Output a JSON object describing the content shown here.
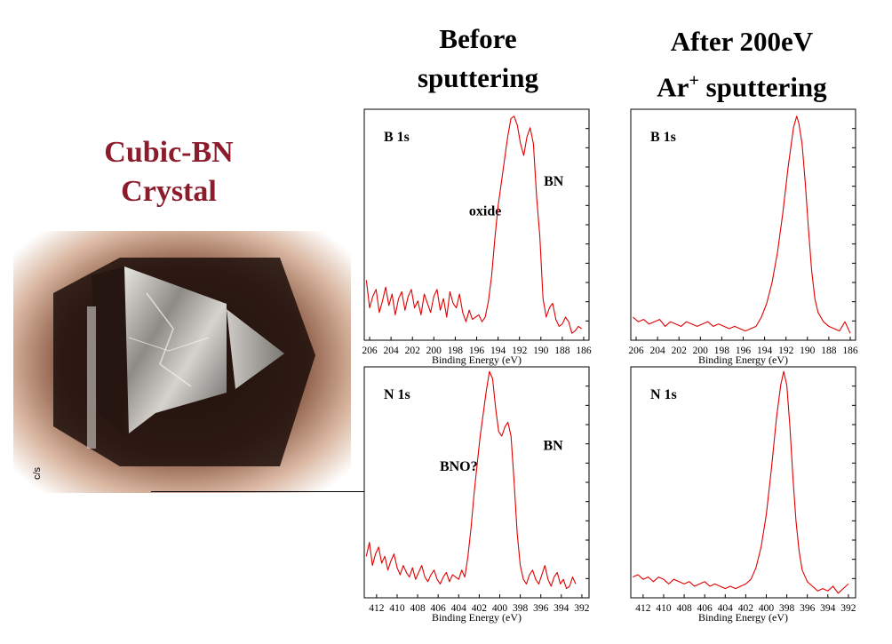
{
  "headings": {
    "before_line1": "Before",
    "before_line2": "sputtering",
    "after_line1": "After 200eV",
    "after_line2_prefix": "Ar",
    "after_line2_sup": "+",
    "after_line2_suffix": " sputtering",
    "crystal_line1": "Cubic-BN",
    "crystal_line2": "Crystal",
    "cs_label": "c/s"
  },
  "colors": {
    "trace": "#e00000",
    "crystal_title": "#8b1c2c",
    "frame": "#000000"
  },
  "chart_data": [
    {
      "id": "b1s-before",
      "type": "line",
      "panel_label": "B 1s",
      "xlabel": "Binding Energy (eV)",
      "x_reversed": true,
      "xlim": [
        206.5,
        185.5
      ],
      "ylim": [
        0,
        100
      ],
      "xticks": [
        206,
        204,
        202,
        200,
        198,
        196,
        194,
        192,
        190,
        188,
        186
      ],
      "annotations": [
        {
          "text": "oxide",
          "x": 195.2,
          "y": 54
        },
        {
          "text": "BN",
          "x": 188.8,
          "y": 67
        }
      ],
      "series": [
        {
          "x": [
            206.3,
            206.0,
            205.7,
            205.4,
            205.1,
            204.8,
            204.5,
            204.2,
            203.9,
            203.6,
            203.3,
            203.0,
            202.7,
            202.4,
            202.1,
            201.8,
            201.5,
            201.2,
            200.9,
            200.6,
            200.3,
            200.0,
            199.7,
            199.4,
            199.1,
            198.8,
            198.5,
            198.2,
            197.9,
            197.6,
            197.3,
            197.0,
            196.7,
            196.4,
            196.1,
            195.8,
            195.5,
            195.2,
            194.9,
            194.6,
            194.3,
            194.0,
            193.7,
            193.4,
            193.1,
            192.8,
            192.5,
            192.2,
            191.9,
            191.6,
            191.3,
            191.0,
            190.7,
            190.4,
            190.1,
            189.8,
            189.5,
            189.2,
            188.9,
            188.6,
            188.3,
            188.0,
            187.7,
            187.4,
            187.1,
            186.8,
            186.5,
            186.2
          ],
          "y": [
            26,
            14,
            19,
            22,
            12,
            17,
            23,
            15,
            20,
            11,
            18,
            21,
            13,
            19,
            22,
            14,
            17,
            11,
            20,
            16,
            12,
            19,
            22,
            13,
            18,
            10,
            21,
            16,
            14,
            20,
            12,
            8,
            13,
            9,
            10,
            11,
            8,
            10,
            17,
            28,
            44,
            58,
            68,
            78,
            88,
            96,
            97,
            93,
            85,
            80,
            88,
            92,
            85,
            62,
            45,
            18,
            10,
            14,
            16,
            9,
            6,
            7,
            10,
            8,
            3,
            4,
            6,
            5
          ]
        }
      ]
    },
    {
      "id": "b1s-after",
      "type": "line",
      "panel_label": "B 1s",
      "xlabel": "Binding Energy (eV)",
      "x_reversed": true,
      "xlim": [
        206.5,
        185.5
      ],
      "ylim": [
        0,
        100
      ],
      "xticks": [
        206,
        204,
        202,
        200,
        198,
        196,
        194,
        192,
        190,
        188,
        186
      ],
      "series": [
        {
          "x": [
            206.3,
            205.8,
            205.3,
            204.8,
            204.3,
            203.8,
            203.3,
            202.8,
            202.3,
            201.8,
            201.3,
            200.8,
            200.3,
            199.8,
            199.3,
            198.8,
            198.3,
            197.8,
            197.3,
            196.8,
            196.3,
            195.8,
            195.3,
            194.8,
            194.3,
            193.8,
            193.3,
            192.8,
            192.3,
            191.8,
            191.3,
            191.0,
            190.8,
            190.5,
            190.2,
            189.9,
            189.6,
            189.3,
            189.0,
            188.5,
            188.0,
            187.5,
            187.0,
            186.5,
            186.0
          ],
          "y": [
            10,
            8,
            9,
            7,
            8,
            9,
            6,
            8,
            7,
            6,
            8,
            7,
            6,
            7,
            8,
            6,
            7,
            6,
            5,
            6,
            5,
            4,
            5,
            6,
            10,
            16,
            25,
            38,
            55,
            75,
            92,
            97,
            94,
            85,
            68,
            48,
            30,
            18,
            12,
            8,
            6,
            5,
            4,
            8,
            3
          ]
        }
      ]
    },
    {
      "id": "n1s-before",
      "type": "line",
      "panel_label": "N 1s",
      "xlabel": "Binding Energy (eV)",
      "x_reversed": true,
      "xlim": [
        413.2,
        391.3
      ],
      "ylim": [
        0,
        100
      ],
      "xticks": [
        412,
        410,
        408,
        406,
        404,
        402,
        400,
        398,
        396,
        394,
        392
      ],
      "annotations": [
        {
          "text": "BNO?",
          "x": 404.0,
          "y": 55
        },
        {
          "text": "BN",
          "x": 394.8,
          "y": 64
        }
      ],
      "series": [
        {
          "x": [
            413.0,
            412.7,
            412.4,
            412.1,
            411.8,
            411.5,
            411.2,
            410.9,
            410.6,
            410.3,
            410.0,
            409.7,
            409.4,
            409.1,
            408.8,
            408.5,
            408.2,
            407.9,
            407.6,
            407.3,
            407.0,
            406.7,
            406.4,
            406.1,
            405.8,
            405.5,
            405.2,
            404.9,
            404.6,
            404.3,
            404.0,
            403.7,
            403.4,
            403.1,
            402.8,
            402.5,
            402.2,
            401.9,
            401.6,
            401.3,
            401.0,
            400.7,
            400.4,
            400.1,
            399.8,
            399.5,
            399.2,
            398.9,
            398.6,
            398.3,
            398.0,
            397.7,
            397.4,
            397.1,
            396.8,
            396.5,
            396.2,
            395.9,
            395.6,
            395.3,
            395.0,
            394.7,
            394.4,
            394.1,
            393.8,
            393.5,
            393.2,
            392.9,
            392.6
          ],
          "y": [
            18,
            24,
            14,
            19,
            22,
            15,
            18,
            12,
            16,
            19,
            13,
            10,
            14,
            11,
            9,
            13,
            8,
            11,
            14,
            9,
            7,
            10,
            12,
            8,
            6,
            9,
            11,
            7,
            10,
            9,
            8,
            12,
            9,
            18,
            30,
            45,
            58,
            70,
            80,
            90,
            98,
            95,
            82,
            72,
            70,
            74,
            76,
            70,
            50,
            28,
            14,
            8,
            6,
            10,
            12,
            8,
            6,
            10,
            14,
            8,
            5,
            9,
            11,
            6,
            8,
            4,
            5,
            9,
            6
          ]
        }
      ]
    },
    {
      "id": "n1s-after",
      "type": "line",
      "panel_label": "N 1s",
      "xlabel": "Binding Energy (eV)",
      "x_reversed": true,
      "xlim": [
        413.2,
        391.3
      ],
      "ylim": [
        0,
        100
      ],
      "xticks": [
        412,
        410,
        408,
        406,
        404,
        402,
        400,
        398,
        396,
        394,
        392
      ],
      "series": [
        {
          "x": [
            413.0,
            412.5,
            412.0,
            411.5,
            411.0,
            410.5,
            410.0,
            409.5,
            409.0,
            408.5,
            408.0,
            407.5,
            407.0,
            406.5,
            406.0,
            405.5,
            405.0,
            404.5,
            404.0,
            403.5,
            403.0,
            402.5,
            402.0,
            401.5,
            401.0,
            400.5,
            400.0,
            399.5,
            399.0,
            398.6,
            398.3,
            398.0,
            397.7,
            397.4,
            397.1,
            396.8,
            396.5,
            396.0,
            395.5,
            395.0,
            394.5,
            394.0,
            393.5,
            393.0,
            392.5,
            392.0
          ],
          "y": [
            9,
            10,
            8,
            9,
            7,
            9,
            8,
            6,
            8,
            7,
            6,
            7,
            5,
            6,
            7,
            5,
            6,
            5,
            4,
            5,
            4,
            5,
            6,
            8,
            13,
            22,
            36,
            56,
            78,
            92,
            98,
            92,
            74,
            52,
            33,
            20,
            12,
            7,
            5,
            3,
            4,
            3,
            5,
            2,
            4,
            6
          ]
        }
      ]
    }
  ]
}
